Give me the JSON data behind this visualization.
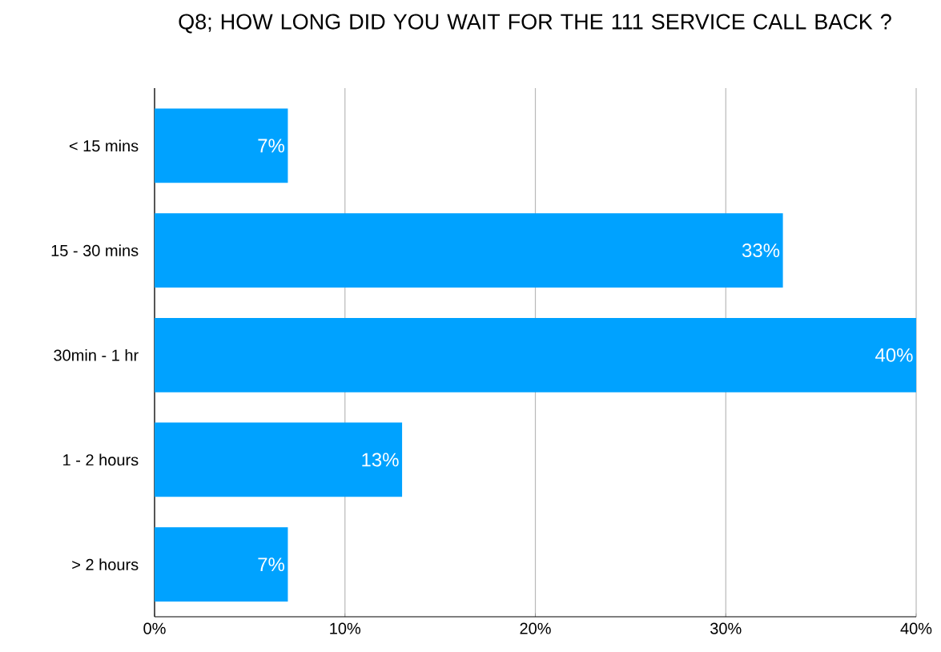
{
  "chart_data": {
    "type": "bar",
    "orientation": "horizontal",
    "title": "Q8; HOW LONG DID YOU WAIT FOR THE 111 SERVICE CALL BACK ?",
    "categories": [
      "< 15 mins",
      "15 - 30 mins",
      "30min - 1 hr",
      "1 - 2 hours",
      "> 2 hours"
    ],
    "values": [
      7,
      33,
      40,
      13,
      7
    ],
    "value_labels": [
      "7%",
      "33%",
      "40%",
      "13%",
      "7%"
    ],
    "color": "#00a2ff",
    "xlim": [
      0,
      40
    ],
    "xticks": [
      {
        "value": 0,
        "label": "0%"
      },
      {
        "value": 10,
        "label": "10%"
      },
      {
        "value": 20,
        "label": "20%"
      },
      {
        "value": 30,
        "label": "30%"
      },
      {
        "value": 40,
        "label": "40%"
      }
    ],
    "grid": "x"
  }
}
